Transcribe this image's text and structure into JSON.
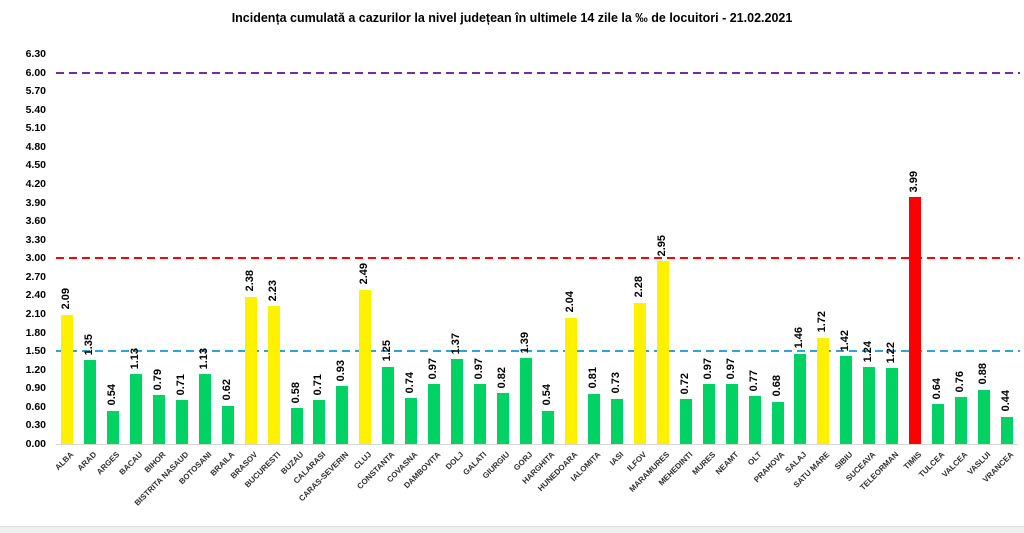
{
  "title": "Incidența cumulată a cazurilor la nivel județean în ultimele 14 zile la ‰ de locuitori - 21.02.2021",
  "colors": {
    "bar_green": "#00D264",
    "bar_yellow": "#FFF100",
    "bar_red": "#FE0000",
    "line_blue": "#2EA4DF",
    "line_red": "#FF0000",
    "line_purple": "#7030A0",
    "axis_line": "#D6D6D6",
    "footer_strip": "#F0F0F0"
  },
  "chart_data": {
    "type": "bar",
    "title": "Incidența cumulată a cazurilor la nivel județean în ultimele 14 zile la ‰ de locuitori - 21.02.2021",
    "xlabel": "",
    "ylabel": "",
    "ylim": [
      0,
      6.3
    ],
    "ytick_step": 0.3,
    "grid": false,
    "legend_position": "none",
    "yticks": [
      "6.30",
      "6.00",
      "5.70",
      "5.40",
      "5.10",
      "4.80",
      "4.50",
      "4.20",
      "3.90",
      "3.60",
      "3.30",
      "3.00",
      "2.70",
      "2.40",
      "2.10",
      "1.80",
      "1.50",
      "1.20",
      "0.90",
      "0.60",
      "0.30",
      "0.00"
    ],
    "reference_lines": [
      {
        "value": 6.0,
        "color": "#7030A0",
        "style": "dashed",
        "name": "red-zone-upper"
      },
      {
        "value": 3.0,
        "color": "#FF0000",
        "style": "dashed",
        "name": "red-zone-threshold"
      },
      {
        "value": 1.5,
        "color": "#2EA4DF",
        "style": "dashed",
        "name": "yellow-zone-threshold"
      }
    ],
    "series": [
      {
        "name": "ALBA",
        "value": 2.09,
        "level": "yellow"
      },
      {
        "name": "ARAD",
        "value": 1.35,
        "level": "green"
      },
      {
        "name": "ARGES",
        "value": 0.54,
        "level": "green"
      },
      {
        "name": "BACAU",
        "value": 1.13,
        "level": "green"
      },
      {
        "name": "BIHOR",
        "value": 0.79,
        "level": "green"
      },
      {
        "name": "BISTRITA NASAUD",
        "value": 0.71,
        "level": "green"
      },
      {
        "name": "BOTOSANI",
        "value": 1.13,
        "level": "green"
      },
      {
        "name": "BRAILA",
        "value": 0.62,
        "level": "green"
      },
      {
        "name": "BRASOV",
        "value": 2.38,
        "level": "yellow"
      },
      {
        "name": "BUCURESTI",
        "value": 2.23,
        "level": "yellow"
      },
      {
        "name": "BUZAU",
        "value": 0.58,
        "level": "green"
      },
      {
        "name": "CALARASI",
        "value": 0.71,
        "level": "green"
      },
      {
        "name": "CARAS-SEVERIN",
        "value": 0.93,
        "level": "green"
      },
      {
        "name": "CLUJ",
        "value": 2.49,
        "level": "yellow"
      },
      {
        "name": "CONSTANTA",
        "value": 1.25,
        "level": "green"
      },
      {
        "name": "COVASNA",
        "value": 0.74,
        "level": "green"
      },
      {
        "name": "DAMBOVITA",
        "value": 0.97,
        "level": "green"
      },
      {
        "name": "DOLJ",
        "value": 1.37,
        "level": "green"
      },
      {
        "name": "GALATI",
        "value": 0.97,
        "level": "green"
      },
      {
        "name": "GIURGIU",
        "value": 0.82,
        "level": "green"
      },
      {
        "name": "GORJ",
        "value": 1.39,
        "level": "green"
      },
      {
        "name": "HARGHITA",
        "value": 0.54,
        "level": "green"
      },
      {
        "name": "HUNEDOARA",
        "value": 2.04,
        "level": "yellow"
      },
      {
        "name": "IALOMITA",
        "value": 0.81,
        "level": "green"
      },
      {
        "name": "IASI",
        "value": 0.73,
        "level": "green"
      },
      {
        "name": "ILFOV",
        "value": 2.28,
        "level": "yellow"
      },
      {
        "name": "MARAMURES",
        "value": 2.95,
        "level": "yellow"
      },
      {
        "name": "MEHEDINTI",
        "value": 0.72,
        "level": "green"
      },
      {
        "name": "MURES",
        "value": 0.97,
        "level": "green"
      },
      {
        "name": "NEAMT",
        "value": 0.97,
        "level": "green"
      },
      {
        "name": "OLT",
        "value": 0.77,
        "level": "green"
      },
      {
        "name": "PRAHOVA",
        "value": 0.68,
        "level": "green"
      },
      {
        "name": "SALAJ",
        "value": 1.46,
        "level": "green"
      },
      {
        "name": "SATU MARE",
        "value": 1.72,
        "level": "yellow"
      },
      {
        "name": "SIBIU",
        "value": 1.42,
        "level": "green"
      },
      {
        "name": "SUCEAVA",
        "value": 1.24,
        "level": "green"
      },
      {
        "name": "TELEORMAN",
        "value": 1.22,
        "level": "green"
      },
      {
        "name": "TIMIS",
        "value": 3.99,
        "level": "red"
      },
      {
        "name": "TULCEA",
        "value": 0.64,
        "level": "green"
      },
      {
        "name": "VALCEA",
        "value": 0.76,
        "level": "green"
      },
      {
        "name": "VASLUI",
        "value": 0.88,
        "level": "green"
      },
      {
        "name": "VRANCEA",
        "value": 0.44,
        "level": "green"
      }
    ]
  }
}
